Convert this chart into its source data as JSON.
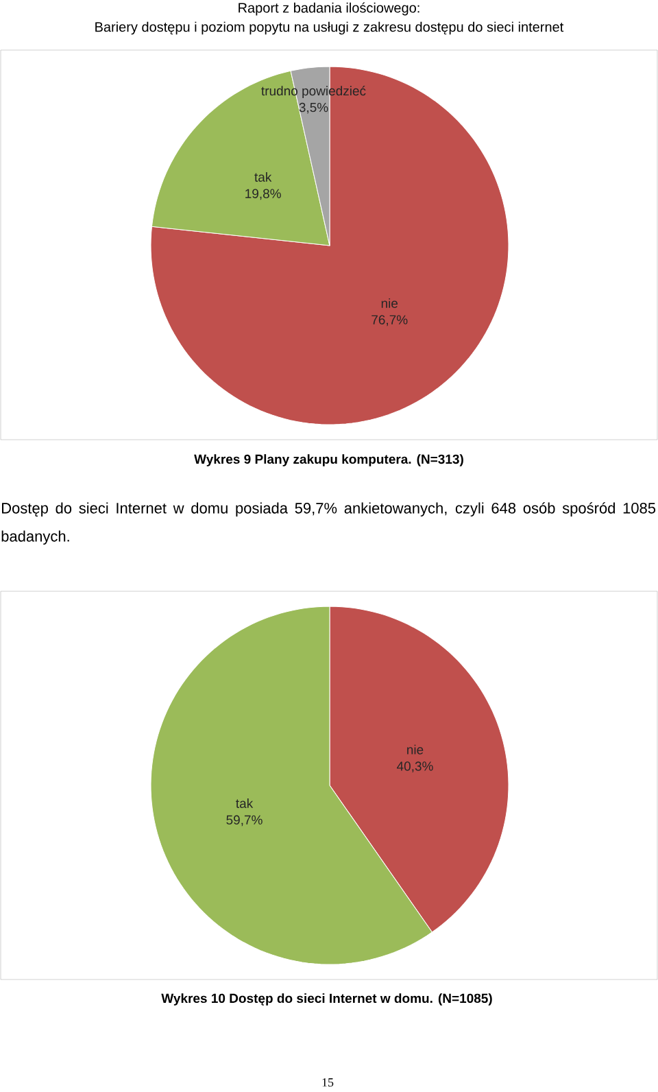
{
  "chart_data": [
    {
      "type": "pie",
      "title": "Wykres 9 Plany zakupu komputera. (N=313)",
      "categories": [
        "nie",
        "tak",
        "trudno powiedzieć"
      ],
      "values": [
        76.7,
        19.8,
        3.5
      ],
      "value_labels": [
        "76,7%",
        "19,8%",
        "3,5%"
      ],
      "colors": [
        "#c0504d",
        "#9bbb59",
        "#a5a5a5"
      ],
      "annotations": [
        "Raport z badania ilościowego:",
        "Bariery dostępu i poziom popytu na usługi z zakresu dostępu do sieci internet",
        "Dostęp do sieci Internet w domu posiada 59,7% ankietowanych, czyli 648 osób spośród 1085 badanych."
      ]
    },
    {
      "type": "pie",
      "title": "Wykres 10 Dostęp do sieci Internet w domu. (N=1085)",
      "categories": [
        "nie",
        "tak"
      ],
      "values": [
        40.3,
        59.7
      ],
      "value_labels": [
        "40,3%",
        "59,7%"
      ],
      "colors": [
        "#c0504d",
        "#9bbb59"
      ],
      "annotations": [
        "15"
      ]
    }
  ]
}
